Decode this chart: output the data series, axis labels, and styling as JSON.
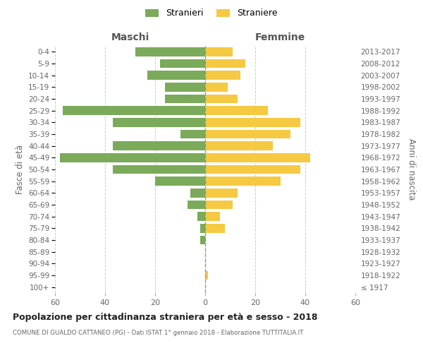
{
  "age_groups": [
    "100+",
    "95-99",
    "90-94",
    "85-89",
    "80-84",
    "75-79",
    "70-74",
    "65-69",
    "60-64",
    "55-59",
    "50-54",
    "45-49",
    "40-44",
    "35-39",
    "30-34",
    "25-29",
    "20-24",
    "15-19",
    "10-14",
    "5-9",
    "0-4"
  ],
  "birth_years": [
    "≤ 1917",
    "1918-1922",
    "1923-1927",
    "1928-1932",
    "1933-1937",
    "1938-1942",
    "1943-1947",
    "1948-1952",
    "1953-1957",
    "1958-1962",
    "1963-1967",
    "1968-1972",
    "1973-1977",
    "1978-1982",
    "1983-1987",
    "1988-1992",
    "1993-1997",
    "1998-2002",
    "2003-2007",
    "2008-2012",
    "2013-2017"
  ],
  "maschi": [
    0,
    0,
    0,
    0,
    2,
    2,
    3,
    7,
    6,
    20,
    37,
    58,
    37,
    10,
    37,
    57,
    16,
    16,
    23,
    18,
    28
  ],
  "femmine": [
    0,
    1,
    0,
    0,
    0,
    8,
    6,
    11,
    13,
    30,
    38,
    42,
    27,
    34,
    38,
    25,
    13,
    9,
    14,
    16,
    11
  ],
  "male_color": "#7aaa5a",
  "female_color": "#f5c942",
  "bg_color": "#ffffff",
  "grid_color": "#cccccc",
  "title": "Popolazione per cittadinanza straniera per età e sesso - 2018",
  "subtitle": "COMUNE DI GUALDO CATTANEO (PG) - Dati ISTAT 1° gennaio 2018 - Elaborazione TUTTITALIA.IT",
  "label_maschi": "Maschi",
  "label_femmine": "Femmine",
  "ylabel_left": "Fasce di età",
  "ylabel_right": "Anni di nascita",
  "legend_male": "Stranieri",
  "legend_female": "Straniere",
  "xlim": 60
}
